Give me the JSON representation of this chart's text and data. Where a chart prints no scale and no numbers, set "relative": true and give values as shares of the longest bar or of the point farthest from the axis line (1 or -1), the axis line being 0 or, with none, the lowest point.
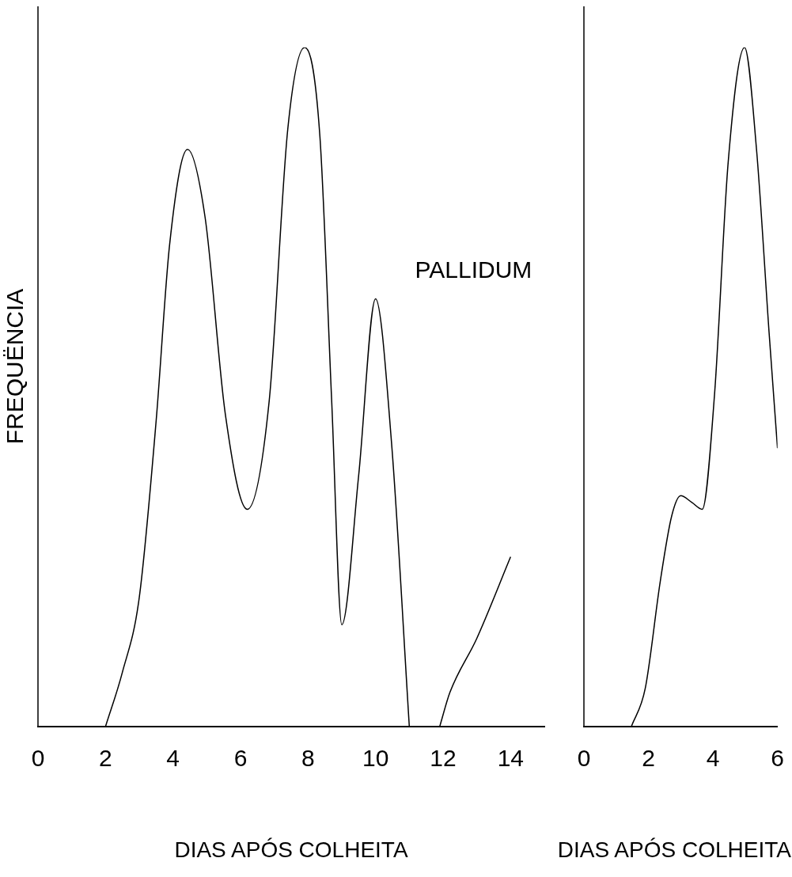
{
  "chart_data": [
    {
      "type": "line",
      "relative": true,
      "ylabel": "FREQUËNCIA",
      "xlabel": "DIAS APÓS COLHEITA",
      "annotations": [
        "PALLIDUM"
      ],
      "xlim": [
        0,
        15
      ],
      "xticks": [
        0,
        2,
        4,
        6,
        8,
        10,
        12,
        14
      ],
      "tick_labels": "x",
      "marker": "none",
      "grid": false,
      "series": [
        {
          "color": "#000000",
          "x": [
            2.0,
            2.5,
            3.0,
            3.5,
            3.9,
            4.43,
            4.95,
            5.55,
            6.2,
            6.85,
            7.4,
            7.9,
            8.35,
            8.7,
            9.0,
            9.5,
            10.0,
            10.47,
            11.0,
            11.45,
            11.9,
            12.2,
            13.0,
            14.0
          ],
          "values": [
            0,
            0.08,
            0.19,
            0.45,
            0.71,
            0.85,
            0.75,
            0.46,
            0.32,
            0.48,
            0.88,
            1.0,
            0.87,
            0.48,
            0.15,
            0.37,
            0.63,
            0.42,
            0,
            null,
            0,
            0.05,
            0.13,
            0.25
          ]
        }
      ]
    },
    {
      "type": "line",
      "relative": true,
      "xlabel": "DIAS APÓS COLHEITA",
      "xlim": [
        0,
        6
      ],
      "xticks": [
        0,
        2,
        4,
        6
      ],
      "tick_labels": "x",
      "marker": "none",
      "grid": false,
      "series": [
        {
          "color": "#000000",
          "x": [
            1.47,
            1.9,
            2.37,
            2.72,
            3.0,
            3.35,
            3.67,
            4.05,
            4.47,
            4.98,
            5.35,
            5.74,
            6.0
          ],
          "values": [
            0,
            0.056,
            0.215,
            0.31,
            0.34,
            0.33,
            0.32,
            0.49,
            0.83,
            1.0,
            0.85,
            0.58,
            0.41
          ]
        }
      ]
    }
  ]
}
